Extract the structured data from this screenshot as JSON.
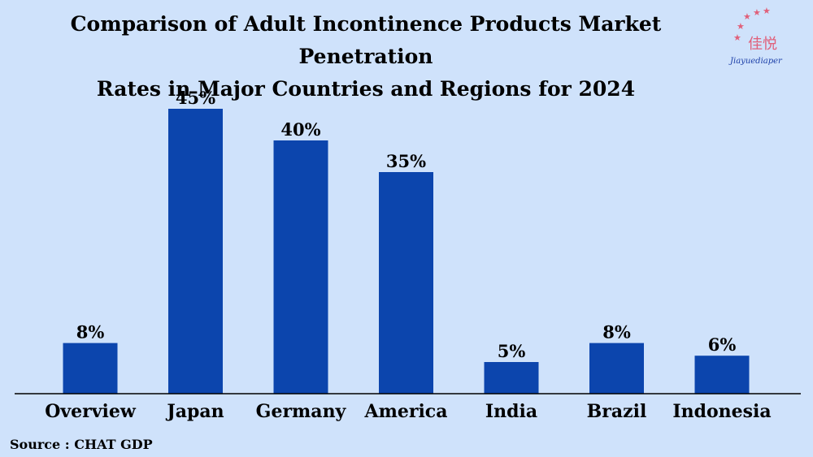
{
  "chart_data": {
    "type": "bar",
    "title_line1": "Comparison of Adult Incontinence Products Market Penetration",
    "title_line2": "Rates in Major Countries and Regions for 2024",
    "categories": [
      "Overview",
      "Japan",
      "Germany",
      "America",
      "India",
      "Brazil",
      "Indonesia"
    ],
    "values": [
      8,
      45,
      40,
      35,
      5,
      8,
      6
    ],
    "value_labels": [
      "8%",
      "45%",
      "40%",
      "35%",
      "5%",
      "8%",
      "6%"
    ],
    "unit": "%",
    "xlabel": "",
    "ylabel": "",
    "ylim": [
      0,
      50
    ],
    "grid": false,
    "legend": "none",
    "bar_color": "#0c45ad"
  },
  "source": "Source : CHAT GDP",
  "logo": {
    "text_cn": "佳悦",
    "text_en": "Jiayuediaper"
  },
  "colors": {
    "background": "#cfe2fb",
    "bar": "#0c45ad",
    "logo_moon": "#2d56c6",
    "logo_stars": "#e0607a"
  }
}
